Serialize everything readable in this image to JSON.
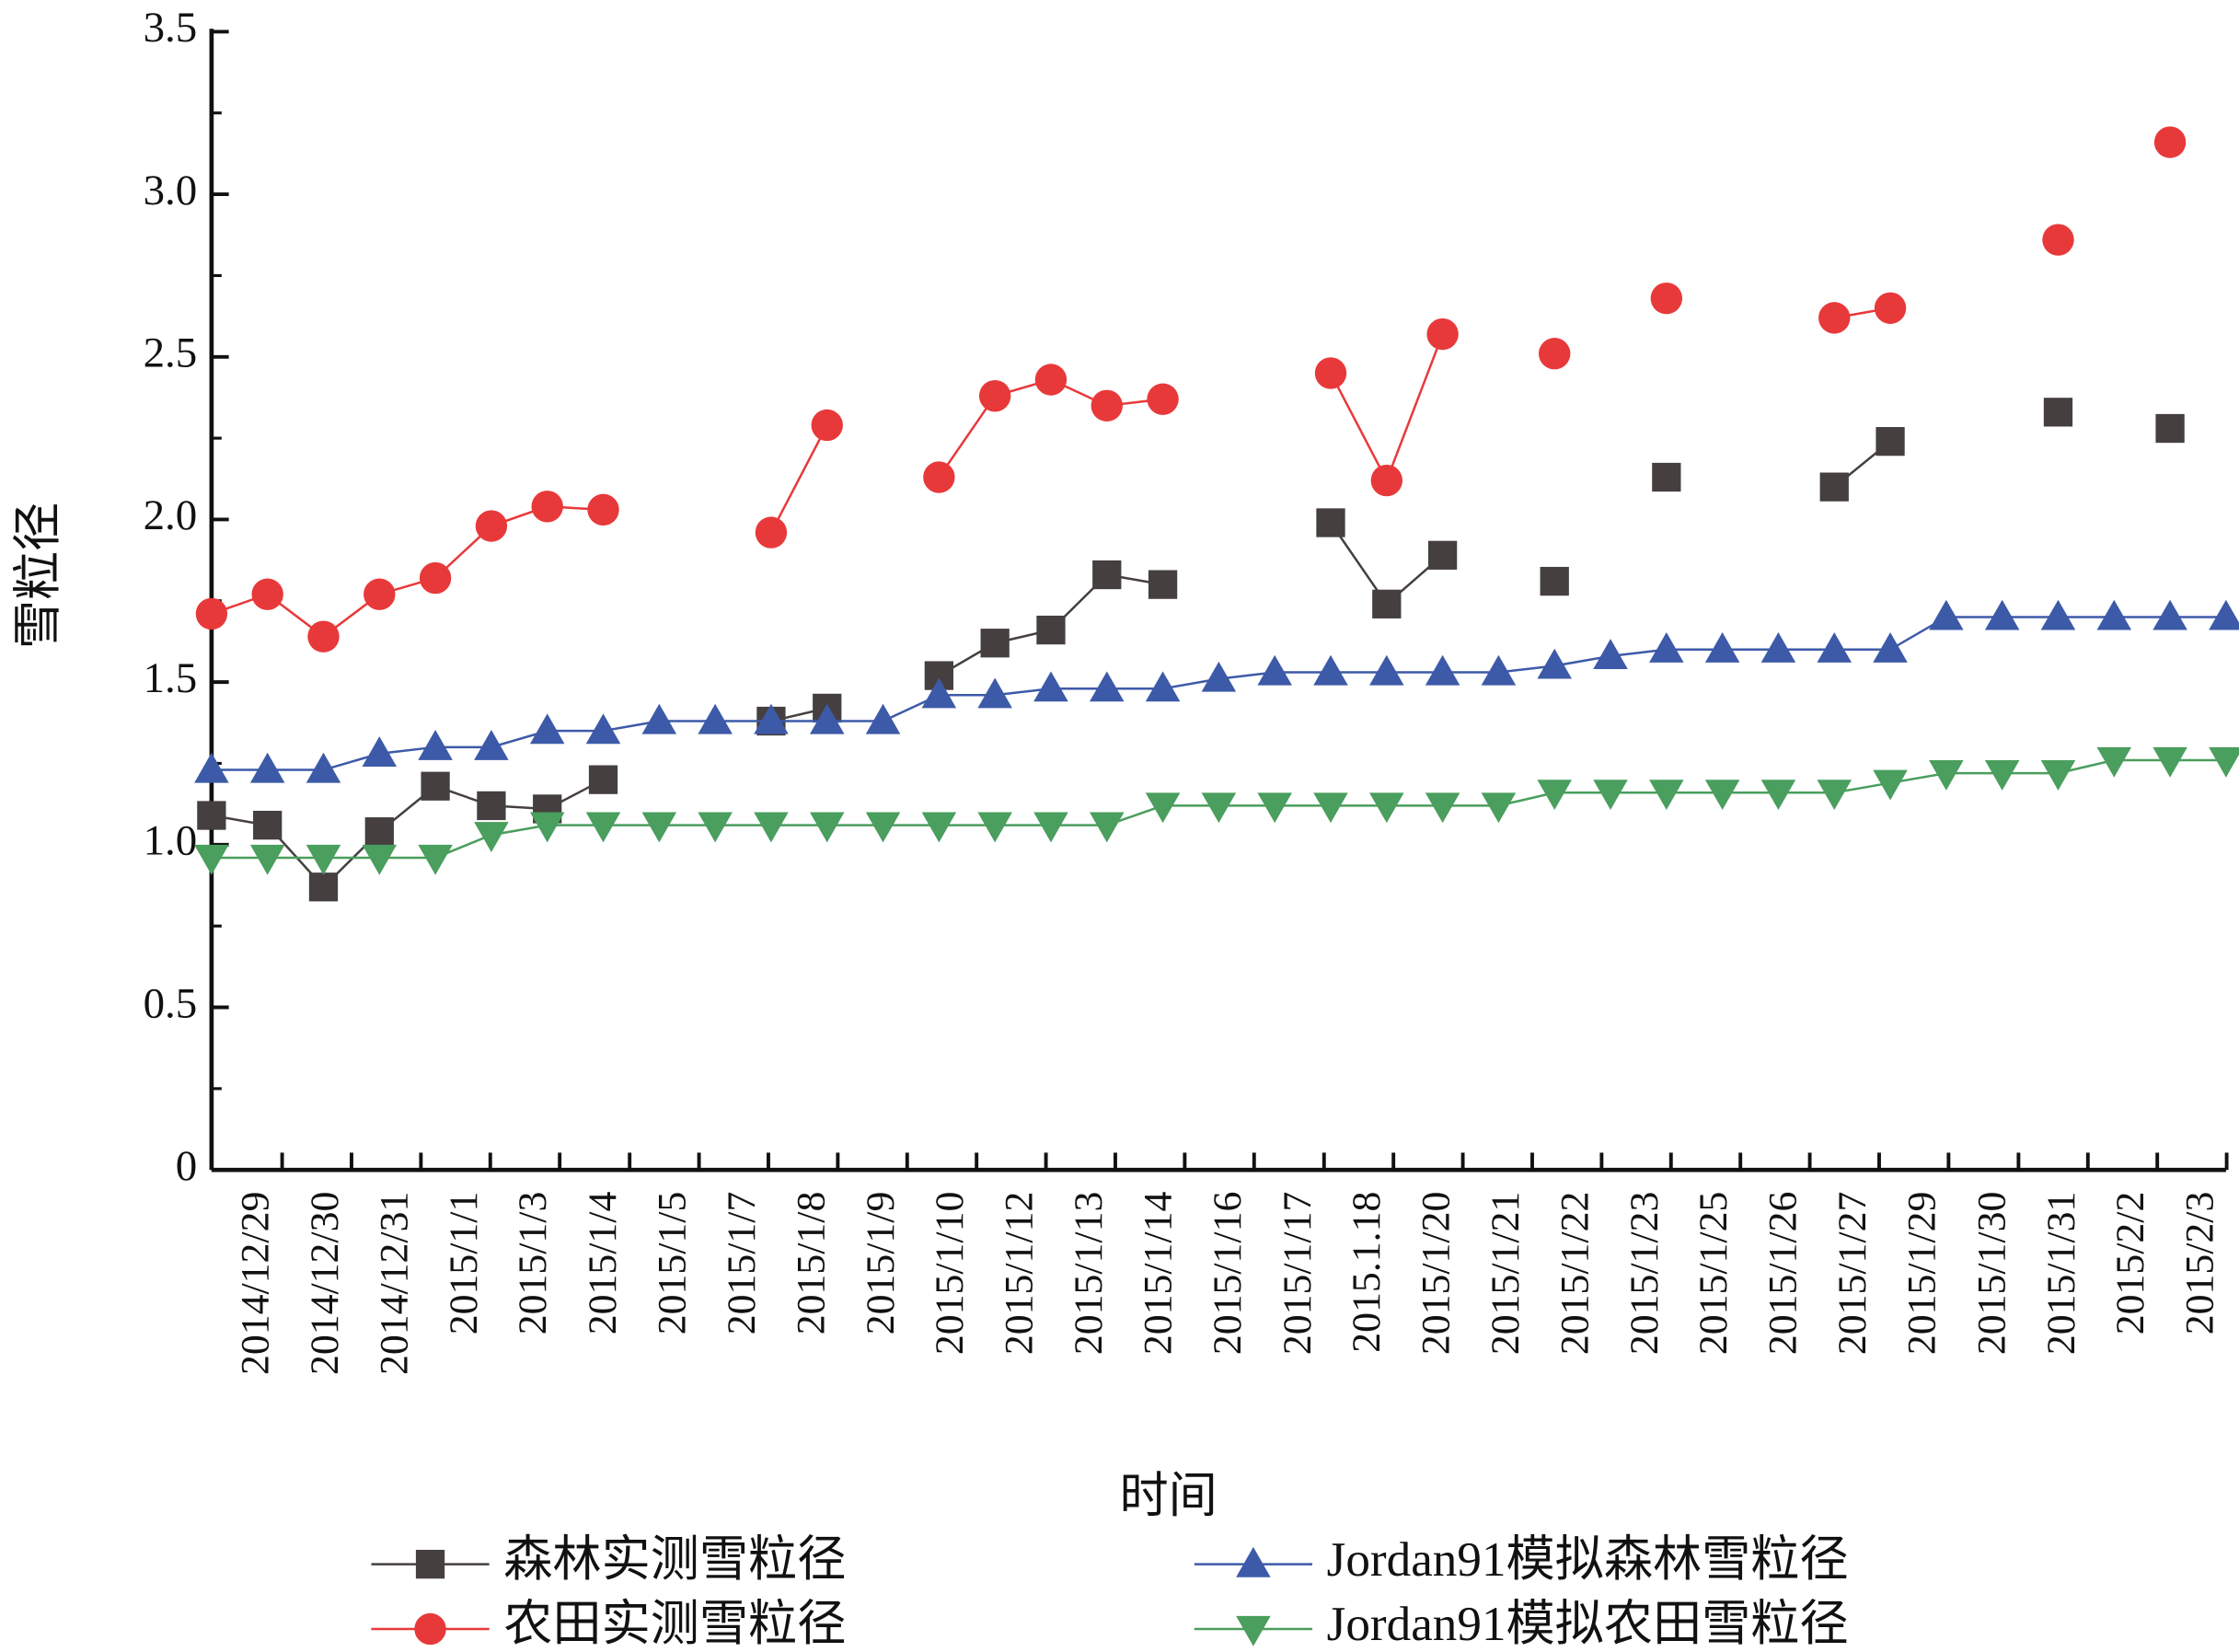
{
  "chart_data": {
    "type": "line",
    "x_label": "时间",
    "y_label": "雪粒径",
    "xlim": [
      0,
      36
    ],
    "xticks": [
      {
        "value": 0.85,
        "label": "2014/12/29"
      },
      {
        "value": 2.09,
        "label": "2014/12/30"
      },
      {
        "value": 3.33,
        "label": "2014/12/31"
      },
      {
        "value": 4.57,
        "label": "2015/1/1"
      },
      {
        "value": 5.81,
        "label": "2015/1/3"
      },
      {
        "value": 7.06,
        "label": "2015/1/4"
      },
      {
        "value": 8.3,
        "label": "2015/1/5"
      },
      {
        "value": 9.54,
        "label": "2015/1/7"
      },
      {
        "value": 10.78,
        "label": "2015/1/8"
      },
      {
        "value": 12.02,
        "label": "2015/1/9"
      },
      {
        "value": 13.26,
        "label": "2015/1/10"
      },
      {
        "value": 14.5,
        "label": "2015/1/12"
      },
      {
        "value": 15.74,
        "label": "2015/1/13"
      },
      {
        "value": 16.98,
        "label": "2015/1/14"
      },
      {
        "value": 18.22,
        "label": "2015/1/16"
      },
      {
        "value": 19.47,
        "label": "2015/1/17"
      },
      {
        "value": 20.71,
        "label": "2015.1.18"
      },
      {
        "value": 21.95,
        "label": "2015/1/20"
      },
      {
        "value": 23.19,
        "label": "2015/1/21"
      },
      {
        "value": 24.43,
        "label": "2015/1/22"
      },
      {
        "value": 25.67,
        "label": "2015/1/23"
      },
      {
        "value": 26.91,
        "label": "2015/1/25"
      },
      {
        "value": 28.15,
        "label": "2015/1/26"
      },
      {
        "value": 29.39,
        "label": "2015/1/27"
      },
      {
        "value": 30.63,
        "label": "2015/1/29"
      },
      {
        "value": 31.88,
        "label": "2015/1/30"
      },
      {
        "value": 33.12,
        "label": "2015/1/31"
      },
      {
        "value": 34.36,
        "label": "2015/2/2"
      },
      {
        "value": 35.6,
        "label": "2015/2/3"
      }
    ],
    "ylim": [
      0,
      3.5
    ],
    "yticks": [
      0,
      0.5,
      {
        "value": 1,
        "label": "1.0"
      },
      1.5,
      {
        "value": 2,
        "label": "2.0"
      },
      2.5,
      {
        "value": 3,
        "label": "3.0"
      },
      3.5
    ],
    "legend": "bottom",
    "series": [
      {
        "name": "森林实测雪粒径",
        "color": "#453f3f",
        "marker": "square",
        "values": [
          1.09,
          1.06,
          0.87,
          1.04,
          1.18,
          1.12,
          1.11,
          1.2,
          null,
          null,
          1.38,
          1.42,
          null,
          1.52,
          1.62,
          1.66,
          1.83,
          1.8,
          null,
          null,
          1.99,
          1.74,
          1.89,
          null,
          1.81,
          null,
          2.13,
          null,
          null,
          2.1,
          2.24,
          null,
          null,
          2.33,
          null,
          2.28,
          null
        ]
      },
      {
        "name": "农田实测雪粒径",
        "color": "#e8393a",
        "marker": "circle",
        "values": [
          1.71,
          1.77,
          1.64,
          1.77,
          1.82,
          1.98,
          2.04,
          2.03,
          null,
          null,
          1.96,
          2.29,
          null,
          2.13,
          2.38,
          2.43,
          2.35,
          2.37,
          null,
          null,
          2.45,
          2.12,
          2.57,
          null,
          2.51,
          null,
          2.68,
          null,
          null,
          2.62,
          2.65,
          null,
          null,
          2.86,
          null,
          3.16,
          null
        ]
      },
      {
        "name": "Jordan91模拟森林雪粒径",
        "color": "#3d5aa8",
        "marker": "triangle-up",
        "values": [
          1.23,
          1.23,
          1.23,
          1.28,
          1.3,
          1.3,
          1.35,
          1.35,
          1.38,
          1.38,
          1.38,
          1.38,
          1.38,
          1.46,
          1.46,
          1.48,
          1.48,
          1.48,
          1.51,
          1.53,
          1.53,
          1.53,
          1.53,
          1.53,
          1.55,
          1.58,
          1.6,
          1.6,
          1.6,
          1.6,
          1.6,
          1.7,
          1.7,
          1.7,
          1.7,
          1.7,
          1.7
        ]
      },
      {
        "name": "Jordan91模拟农田雪粒径",
        "color": "#4a9e5e",
        "marker": "triangle-down",
        "values": [
          0.96,
          0.96,
          0.96,
          0.96,
          0.96,
          1.03,
          1.06,
          1.06,
          1.06,
          1.06,
          1.06,
          1.06,
          1.06,
          1.06,
          1.06,
          1.06,
          1.06,
          1.12,
          1.12,
          1.12,
          1.12,
          1.12,
          1.12,
          1.12,
          1.16,
          1.16,
          1.16,
          1.16,
          1.16,
          1.16,
          1.19,
          1.22,
          1.22,
          1.22,
          1.26,
          1.26,
          1.26
        ]
      }
    ]
  }
}
